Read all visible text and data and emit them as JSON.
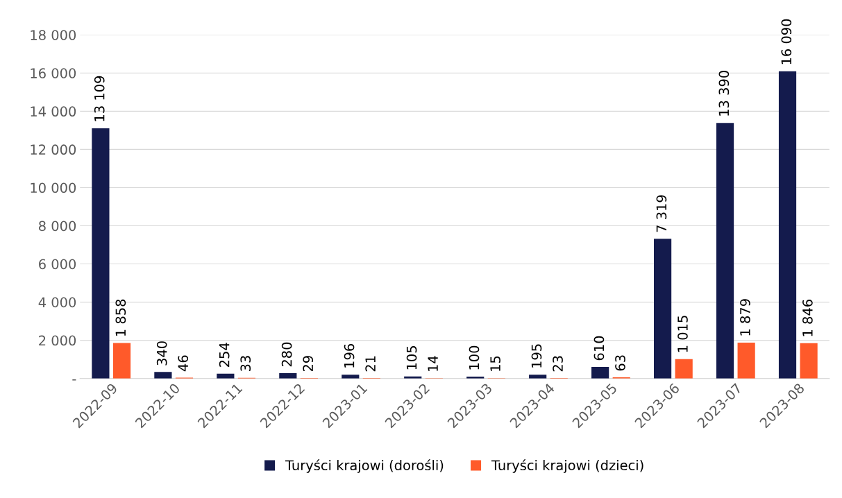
{
  "chart_data": {
    "type": "bar",
    "categories": [
      "2022-09",
      "2022-10",
      "2022-11",
      "2022-12",
      "2023-01",
      "2023-02",
      "2023-03",
      "2023-04",
      "2023-05",
      "2023-06",
      "2023-07",
      "2023-08"
    ],
    "series": [
      {
        "name": "Turyści krajowi (dorośli)",
        "color": "#141b4d",
        "values": [
          13109,
          340,
          254,
          280,
          196,
          105,
          100,
          195,
          610,
          7319,
          13390,
          16090
        ],
        "value_labels": [
          "13 109",
          "340",
          "254",
          "280",
          "196",
          "105",
          "100",
          "195",
          "610",
          "7 319",
          "13 390",
          "16 090"
        ]
      },
      {
        "name": "Turyści krajowi (dzieci)",
        "color": "#ff5a2a",
        "values": [
          1858,
          46,
          33,
          29,
          21,
          14,
          15,
          23,
          63,
          1015,
          1879,
          1846
        ],
        "value_labels": [
          "1 858",
          "46",
          "33",
          "29",
          "21",
          "14",
          "15",
          "23",
          "63",
          "1 015",
          "1 879",
          "1 846"
        ]
      }
    ],
    "ylim": [
      0,
      18000
    ],
    "yticks": [
      {
        "value": 0,
        "label": "-"
      },
      {
        "value": 2000,
        "label": "2 000"
      },
      {
        "value": 4000,
        "label": "4 000"
      },
      {
        "value": 6000,
        "label": "6 000"
      },
      {
        "value": 8000,
        "label": "8 000"
      },
      {
        "value": 10000,
        "label": "10 000"
      },
      {
        "value": 12000,
        "label": "12 000"
      },
      {
        "value": 14000,
        "label": "14 000"
      },
      {
        "value": 16000,
        "label": "16 000"
      },
      {
        "value": 18000,
        "label": "18 000"
      }
    ],
    "grid": "y",
    "legend": "bottom"
  }
}
